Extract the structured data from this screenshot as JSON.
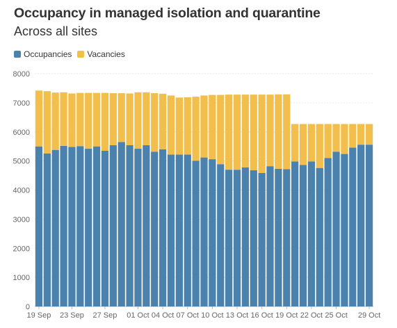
{
  "chart_data": {
    "type": "bar",
    "stacked": true,
    "title": "Occupancy in managed isolation and quarantine",
    "subtitle": "Across all sites",
    "xlabel": "",
    "ylabel": "",
    "ylim": [
      0,
      8000
    ],
    "yticks": [
      0,
      1000,
      2000,
      3000,
      4000,
      5000,
      6000,
      7000,
      8000
    ],
    "grid": true,
    "legend_position": "top-left",
    "categories": [
      "19 Sep",
      "20 Sep",
      "21 Sep",
      "22 Sep",
      "23 Sep",
      "24 Sep",
      "25 Sep",
      "26 Sep",
      "27 Sep",
      "28 Sep",
      "29 Sep",
      "30 Sep",
      "01 Oct",
      "02 Oct",
      "03 Oct",
      "04 Oct",
      "05 Oct",
      "06 Oct",
      "07 Oct",
      "08 Oct",
      "09 Oct",
      "10 Oct",
      "11 Oct",
      "12 Oct",
      "13 Oct",
      "14 Oct",
      "15 Oct",
      "16 Oct",
      "17 Oct",
      "18 Oct",
      "19 Oct",
      "20 Oct",
      "21 Oct",
      "22 Oct",
      "23 Oct",
      "24 Oct",
      "25 Oct",
      "26 Oct",
      "27 Oct",
      "28 Oct",
      "29 Oct"
    ],
    "x_tick_labels": [
      "19 Sep",
      "23 Sep",
      "27 Sep",
      "01 Oct",
      "04 Oct",
      "07 Oct",
      "10 Oct",
      "13 Oct",
      "16 Oct",
      "19 Oct",
      "22 Oct",
      "25 Oct",
      "29 Oct"
    ],
    "series": [
      {
        "name": "Occupancies",
        "color": "#4a82ad",
        "values": [
          5500,
          5260,
          5380,
          5520,
          5480,
          5510,
          5420,
          5500,
          5350,
          5540,
          5650,
          5540,
          5420,
          5540,
          5320,
          5400,
          5220,
          5220,
          5220,
          5010,
          5120,
          5060,
          4890,
          4700,
          4700,
          4780,
          4680,
          4590,
          4820,
          4730,
          4720,
          4980,
          4860,
          4980,
          4760,
          5100,
          5320,
          5240,
          5460,
          5560,
          5560
        ]
      },
      {
        "name": "Vacancies",
        "color": "#f2bf4c",
        "values": [
          1920,
          2140,
          1970,
          1840,
          1840,
          1830,
          1920,
          1840,
          1990,
          1790,
          1680,
          1780,
          1940,
          1820,
          2010,
          1910,
          2030,
          1960,
          1970,
          2200,
          2130,
          2210,
          2380,
          2580,
          2580,
          2500,
          2600,
          2690,
          2460,
          2560,
          2570,
          1290,
          1410,
          1290,
          1510,
          1170,
          950,
          1030,
          810,
          710,
          710
        ]
      }
    ]
  },
  "legend": {
    "occupancies_label": "Occupancies",
    "vacancies_label": "Vacancies"
  }
}
